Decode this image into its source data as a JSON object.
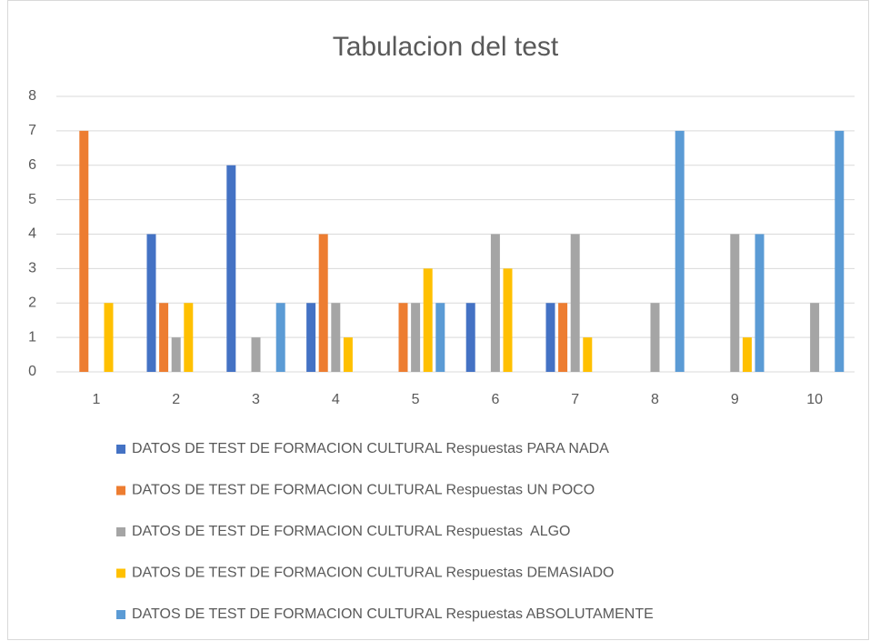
{
  "chart_data": {
    "type": "bar",
    "title": "Tabulacion del test",
    "categories": [
      "1",
      "2",
      "3",
      "4",
      "5",
      "6",
      "7",
      "8",
      "9",
      "10"
    ],
    "series": [
      {
        "name": "DATOS DE TEST DE FORMACION CULTURAL Respuestas PARA NADA",
        "color": "#4472c4",
        "values": [
          0,
          4,
          6,
          2,
          0,
          2,
          2,
          0,
          0,
          0
        ]
      },
      {
        "name": "DATOS DE TEST DE FORMACION CULTURAL Respuestas UN POCO",
        "color": "#ed7d31",
        "values": [
          7,
          2,
          0,
          4,
          2,
          0,
          2,
          0,
          0,
          0
        ]
      },
      {
        "name": "DATOS DE TEST DE FORMACION CULTURAL Respuestas  ALGO",
        "color": "#a5a5a5",
        "values": [
          0,
          1,
          1,
          2,
          2,
          4,
          4,
          2,
          4,
          2
        ]
      },
      {
        "name": "DATOS DE TEST DE FORMACION CULTURAL Respuestas DEMASIADO",
        "color": "#ffc000",
        "values": [
          2,
          2,
          0,
          1,
          3,
          3,
          1,
          0,
          1,
          0
        ]
      },
      {
        "name": "DATOS DE TEST DE FORMACION CULTURAL Respuestas ABSOLUTAMENTE",
        "color": "#5b9bd5",
        "values": [
          0,
          0,
          2,
          0,
          2,
          0,
          0,
          7,
          4,
          7
        ]
      }
    ],
    "ylim": [
      0,
      8
    ],
    "yticks": [
      0,
      1,
      2,
      3,
      4,
      5,
      6,
      7,
      8
    ],
    "grid": true,
    "legend": "bottom"
  }
}
